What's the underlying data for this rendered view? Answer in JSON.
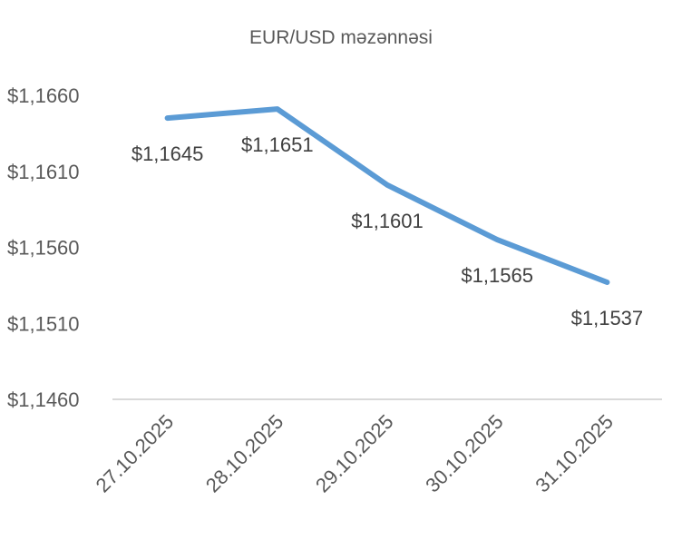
{
  "chart_data": {
    "type": "line",
    "title": "EUR/USD məzənnəsi",
    "xlabel": "",
    "ylabel": "",
    "categories": [
      "27.10.2025",
      "28.10.2025",
      "29.10.2025",
      "30.10.2025",
      "31.10.2025"
    ],
    "series": [
      {
        "values": [
          1.1645,
          1.1651,
          1.1601,
          1.1565,
          1.1537
        ],
        "labels": [
          "$1,1645",
          "$1,1651",
          "$1,1601",
          "$1,1565",
          "$1,1537"
        ]
      }
    ],
    "yticks": [
      {
        "value": 1.146,
        "label": "$1,1460"
      },
      {
        "value": 1.151,
        "label": "$1,1510"
      },
      {
        "value": 1.156,
        "label": "$1,1560"
      },
      {
        "value": 1.161,
        "label": "$1,1610"
      },
      {
        "value": 1.166,
        "label": "$1,1660"
      }
    ],
    "ylim": [
      1.146,
      1.166
    ],
    "grid": false,
    "legend": "none",
    "colors": {
      "line": "#5B9BD5",
      "axis": "#D9D9D9",
      "text": "#595959"
    }
  }
}
